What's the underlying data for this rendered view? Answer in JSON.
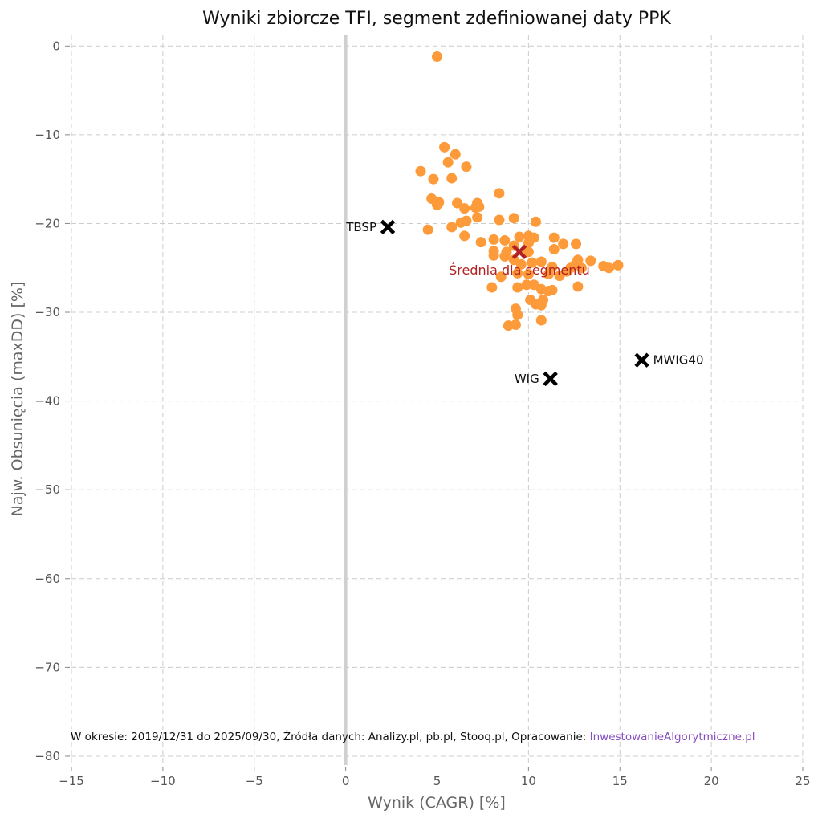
{
  "chart_data": {
    "type": "scatter",
    "title": "Wyniki zbiorcze TFI, segment zdefiniowanej daty PPK",
    "xlabel": "Wynik (CAGR) [%]",
    "ylabel": "Najw. Obsunięcia (maxDD) [%]",
    "xlim": [
      -15,
      25
    ],
    "ylim": [
      -81,
      1.2
    ],
    "xticks": [
      -15,
      -10,
      -5,
      0,
      5,
      10,
      15,
      20,
      25
    ],
    "xtick_labels": [
      "−15",
      "−10",
      "−5",
      "0",
      "5",
      "10",
      "15",
      "20",
      "25"
    ],
    "yticks": [
      0,
      -10,
      -20,
      -30,
      -40,
      -50,
      -60,
      -70,
      -80
    ],
    "ytick_labels": [
      "0",
      "−10",
      "−20",
      "−30",
      "−40",
      "−50",
      "−60",
      "−70",
      "−80"
    ],
    "grid": true,
    "funds": {
      "color": "#fd9a3a",
      "points": [
        [
          5.0,
          -1.2
        ],
        [
          5.4,
          -11.4
        ],
        [
          6.0,
          -12.2
        ],
        [
          5.6,
          -13.1
        ],
        [
          6.6,
          -13.6
        ],
        [
          4.1,
          -14.1
        ],
        [
          4.8,
          -15.0
        ],
        [
          5.8,
          -14.9
        ],
        [
          8.4,
          -16.6
        ],
        [
          4.7,
          -17.2
        ],
        [
          5.1,
          -17.6
        ],
        [
          5.0,
          -17.9
        ],
        [
          6.1,
          -17.7
        ],
        [
          6.5,
          -18.3
        ],
        [
          7.2,
          -17.7
        ],
        [
          7.3,
          -18.1
        ],
        [
          7.1,
          -18.2
        ],
        [
          4.5,
          -20.7
        ],
        [
          5.8,
          -20.4
        ],
        [
          6.3,
          -19.9
        ],
        [
          6.6,
          -19.7
        ],
        [
          7.2,
          -19.3
        ],
        [
          6.5,
          -21.4
        ],
        [
          8.4,
          -19.6
        ],
        [
          9.2,
          -19.4
        ],
        [
          10.4,
          -19.8
        ],
        [
          7.4,
          -22.1
        ],
        [
          8.1,
          -21.8
        ],
        [
          9.5,
          -21.5
        ],
        [
          10.0,
          -21.4
        ],
        [
          10.3,
          -21.6
        ],
        [
          11.4,
          -21.6
        ],
        [
          11.9,
          -22.3
        ],
        [
          12.6,
          -22.3
        ],
        [
          8.7,
          -21.9
        ],
        [
          8.1,
          -23.1
        ],
        [
          8.1,
          -23.6
        ],
        [
          8.8,
          -23.2
        ],
        [
          8.7,
          -23.7
        ],
        [
          9.2,
          -22.5
        ],
        [
          10.0,
          -22.2
        ],
        [
          10.0,
          -23.2
        ],
        [
          11.4,
          -22.9
        ],
        [
          9.2,
          -24.1
        ],
        [
          9.6,
          -24.6
        ],
        [
          10.2,
          -24.4
        ],
        [
          10.7,
          -24.3
        ],
        [
          11.3,
          -24.9
        ],
        [
          12.7,
          -24.1
        ],
        [
          12.6,
          -24.5
        ],
        [
          12.3,
          -25.0
        ],
        [
          13.4,
          -24.2
        ],
        [
          14.1,
          -24.8
        ],
        [
          14.4,
          -25.0
        ],
        [
          14.9,
          -24.7
        ],
        [
          12.9,
          -25.0
        ],
        [
          8.5,
          -26.0
        ],
        [
          9.4,
          -25.6
        ],
        [
          10.0,
          -25.7
        ],
        [
          11.1,
          -25.7
        ],
        [
          11.7,
          -25.9
        ],
        [
          12.1,
          -25.4
        ],
        [
          8.0,
          -27.2
        ],
        [
          9.4,
          -27.2
        ],
        [
          9.9,
          -26.9
        ],
        [
          10.3,
          -26.9
        ],
        [
          10.7,
          -27.4
        ],
        [
          11.3,
          -27.5
        ],
        [
          12.7,
          -27.1
        ],
        [
          10.1,
          -28.6
        ],
        [
          10.8,
          -28.6
        ],
        [
          10.4,
          -29.1
        ],
        [
          10.7,
          -29.2
        ],
        [
          9.3,
          -29.6
        ],
        [
          9.4,
          -30.3
        ],
        [
          10.7,
          -30.9
        ],
        [
          8.9,
          -31.5
        ],
        [
          9.3,
          -31.4
        ],
        [
          11.1,
          -27.6
        ]
      ]
    },
    "mean": {
      "label": "Średnia dla segmentu",
      "x": 9.5,
      "y": -23.2,
      "color": "#b22222"
    },
    "benchmarks": [
      {
        "label": "TBSP",
        "x": 2.3,
        "y": -20.4,
        "side": "left"
      },
      {
        "label": "WIG",
        "x": 11.2,
        "y": -37.5,
        "side": "left"
      },
      {
        "label": "MWIG40",
        "x": 16.2,
        "y": -35.4,
        "side": "right"
      }
    ],
    "footer": {
      "text": "W okresie: 2019/12/31 do 2025/09/30, Źródła danych: Analizy.pl, pb.pl, Stooq.pl, Opracowanie: ",
      "link": "InwestowanieAlgorytmiczne.pl"
    }
  }
}
